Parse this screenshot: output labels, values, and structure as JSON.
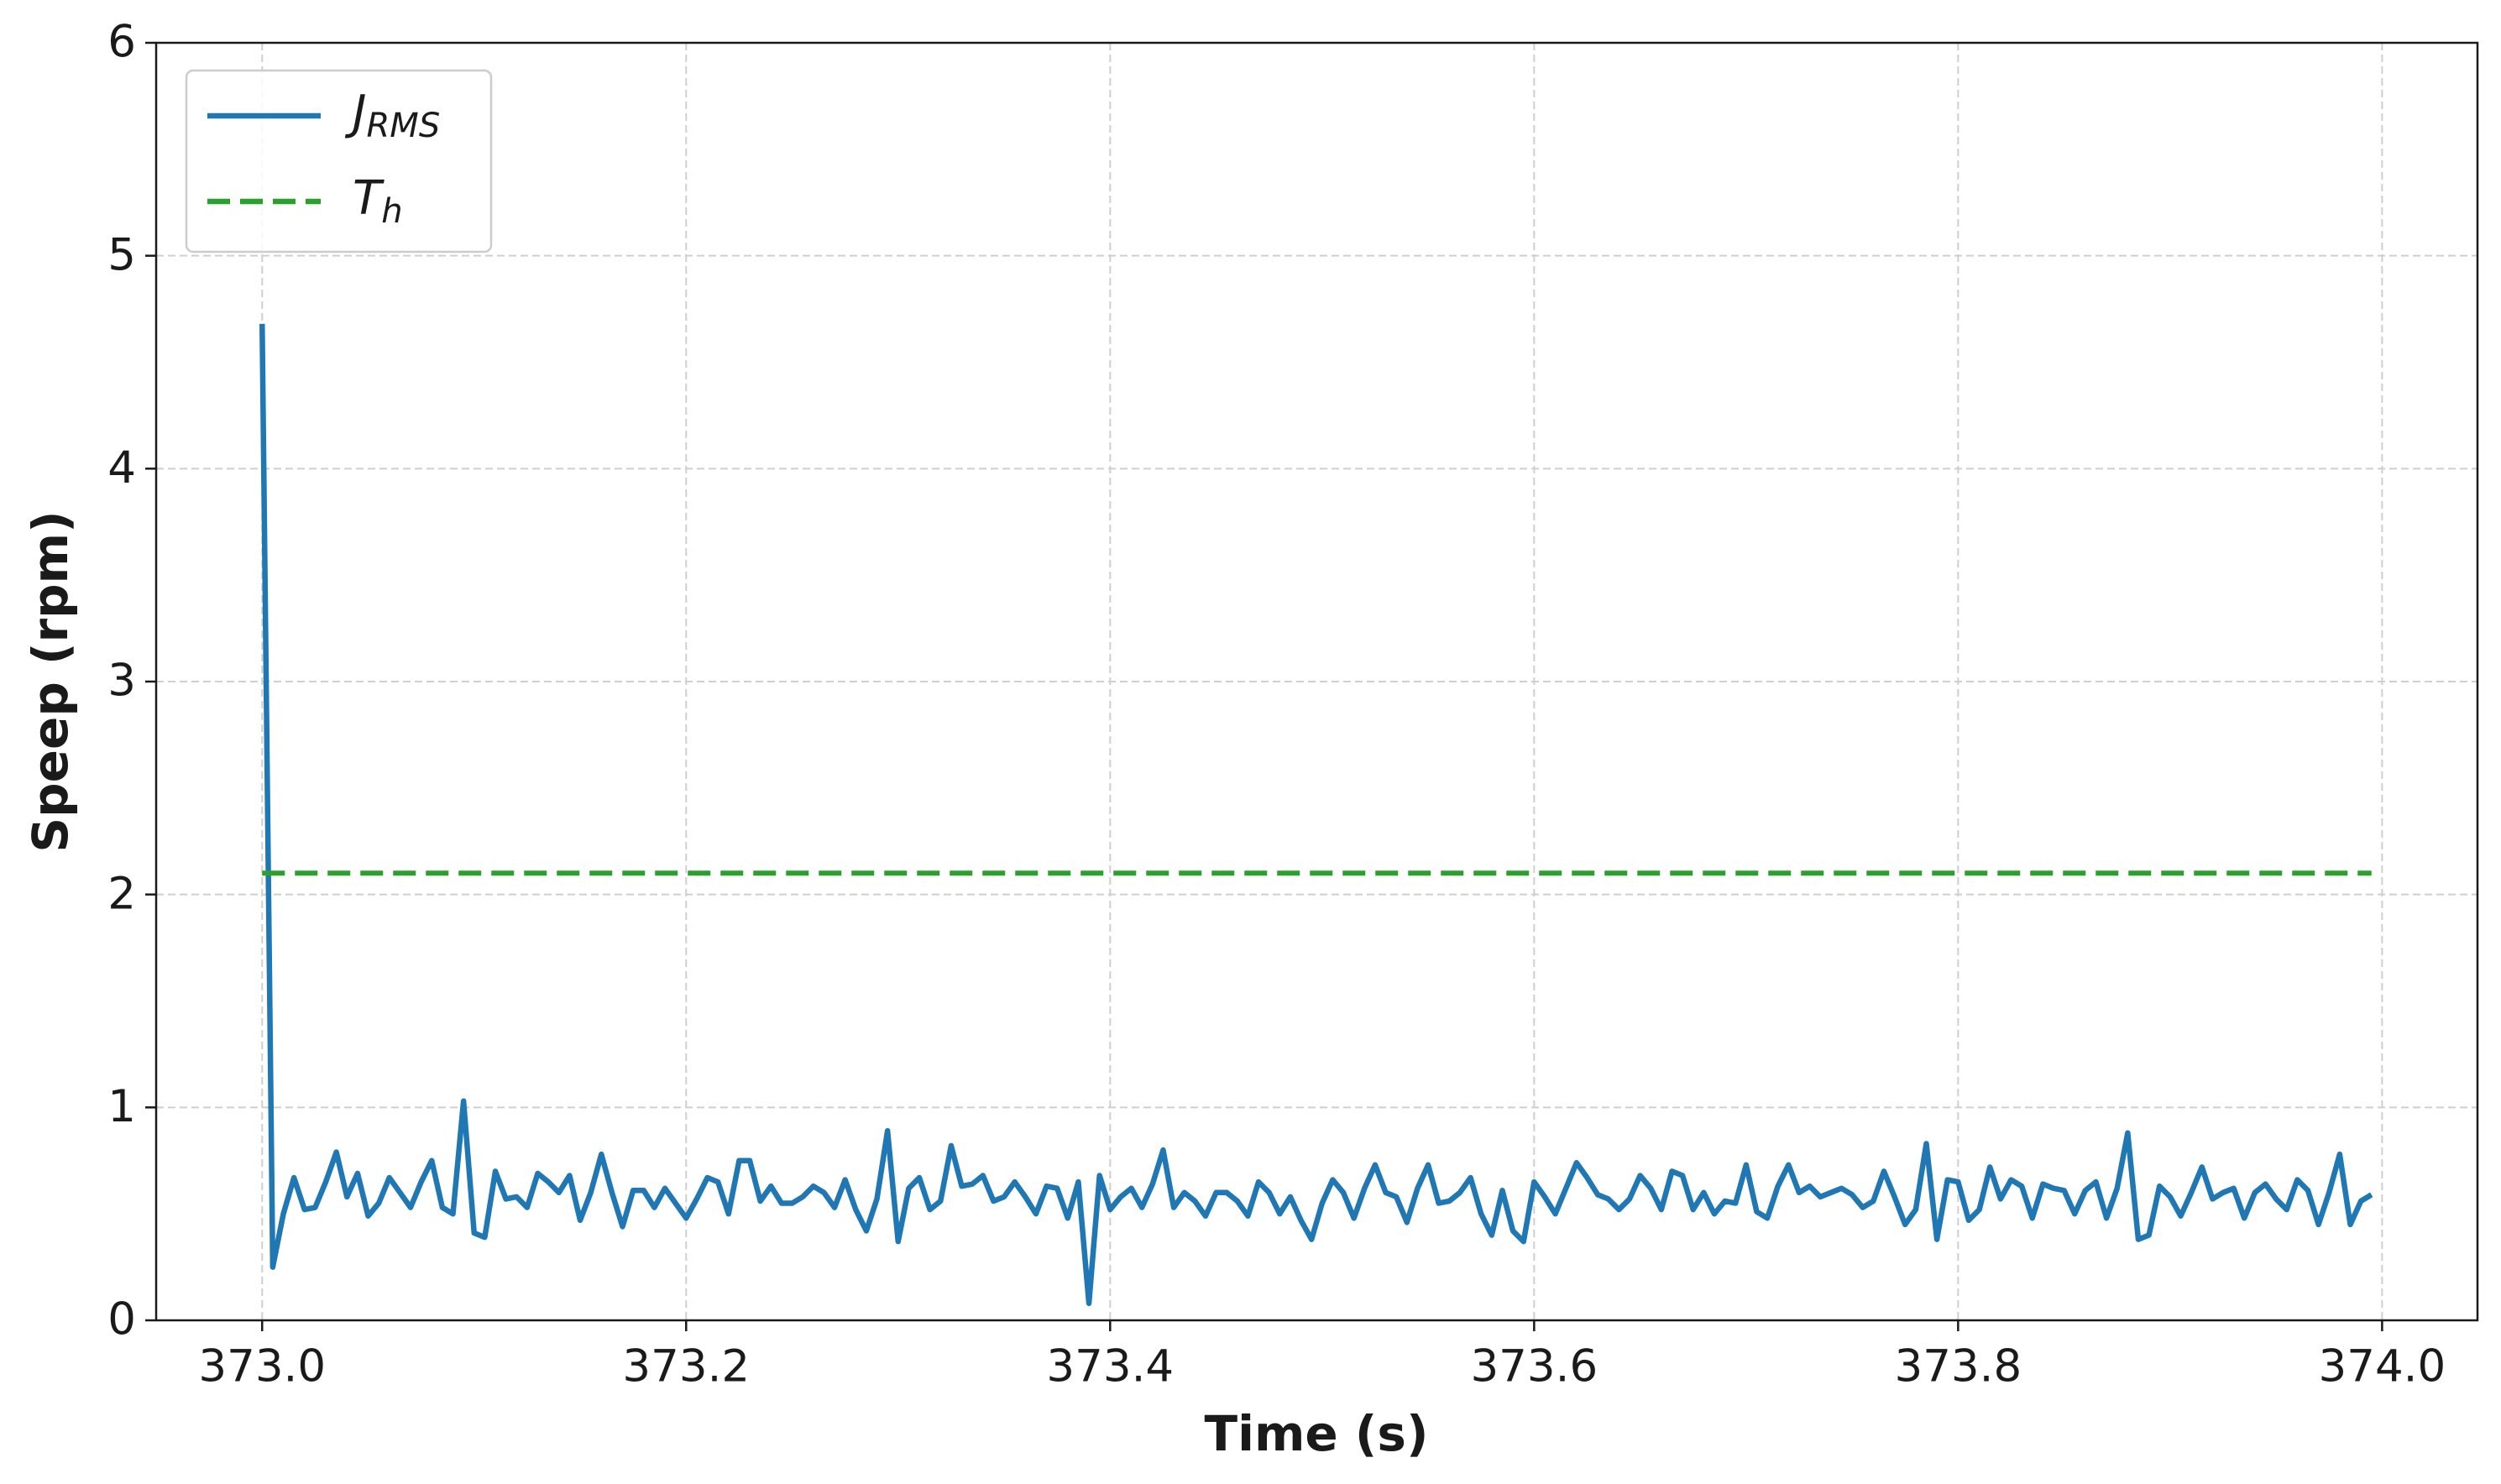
{
  "chart_data": {
    "type": "line",
    "xlabel": "Time (s)",
    "ylabel": "Speep (rpm)",
    "xlim": [
      372.95,
      374.045
    ],
    "ylim": [
      0,
      6
    ],
    "xticks": [
      {
        "value": 373,
        "label": "373.0"
      },
      373.2,
      373.4,
      373.6,
      373.8,
      {
        "value": 374,
        "label": "374.0"
      }
    ],
    "yticks": [
      0,
      1,
      2,
      3,
      4,
      5,
      6
    ],
    "grid": true,
    "legend": "upper left",
    "x": [
      373.0,
      373.005,
      373.01,
      373.015,
      373.02,
      373.025,
      373.03,
      373.035,
      373.04,
      373.045,
      373.05,
      373.055,
      373.06,
      373.065,
      373.07,
      373.075,
      373.08,
      373.085,
      373.09,
      373.095,
      373.1,
      373.105,
      373.11,
      373.115,
      373.12,
      373.125,
      373.13,
      373.135,
      373.14,
      373.145,
      373.15,
      373.155,
      373.16,
      373.165,
      373.17,
      373.175,
      373.18,
      373.185,
      373.19,
      373.195,
      373.2,
      373.205,
      373.21,
      373.215,
      373.22,
      373.225,
      373.23,
      373.235,
      373.24,
      373.245,
      373.25,
      373.255,
      373.26,
      373.265,
      373.27,
      373.275,
      373.28,
      373.285,
      373.29,
      373.295,
      373.3,
      373.305,
      373.31,
      373.315,
      373.32,
      373.325,
      373.33,
      373.335,
      373.34,
      373.345,
      373.35,
      373.355,
      373.36,
      373.365,
      373.37,
      373.375,
      373.38,
      373.385,
      373.39,
      373.395,
      373.4,
      373.405,
      373.41,
      373.415,
      373.42,
      373.425,
      373.43,
      373.435,
      373.44,
      373.445,
      373.45,
      373.455,
      373.46,
      373.465,
      373.47,
      373.475,
      373.48,
      373.485,
      373.49,
      373.495,
      373.5,
      373.505,
      373.51,
      373.515,
      373.52,
      373.525,
      373.53,
      373.535,
      373.54,
      373.545,
      373.55,
      373.555,
      373.56,
      373.565,
      373.57,
      373.575,
      373.58,
      373.585,
      373.59,
      373.595,
      373.6,
      373.605,
      373.61,
      373.615,
      373.62,
      373.625,
      373.63,
      373.635,
      373.64,
      373.645,
      373.65,
      373.655,
      373.66,
      373.665,
      373.67,
      373.675,
      373.68,
      373.685,
      373.69,
      373.695,
      373.7,
      373.705,
      373.71,
      373.715,
      373.72,
      373.725,
      373.73,
      373.735,
      373.74,
      373.745,
      373.75,
      373.755,
      373.76,
      373.765,
      373.77,
      373.775,
      373.78,
      373.785,
      373.79,
      373.795,
      373.8,
      373.805,
      373.81,
      373.815,
      373.82,
      373.825,
      373.83,
      373.835,
      373.84,
      373.845,
      373.85,
      373.855,
      373.86,
      373.865,
      373.87,
      373.875,
      373.88,
      373.885,
      373.89,
      373.895,
      373.9,
      373.905,
      373.91,
      373.915,
      373.92,
      373.925,
      373.93,
      373.935,
      373.94,
      373.945,
      373.95,
      373.955,
      373.96,
      373.965,
      373.97,
      373.975,
      373.98,
      373.985,
      373.99,
      373.995
    ],
    "series": [
      {
        "name": "JRMS",
        "color": "#1f77b4",
        "style": "solid",
        "values": [
          4.68,
          0.25,
          0.5,
          0.67,
          0.52,
          0.53,
          0.65,
          0.79,
          0.58,
          0.69,
          0.49,
          0.55,
          0.67,
          0.6,
          0.53,
          0.65,
          0.75,
          0.53,
          0.5,
          1.03,
          0.41,
          0.39,
          0.7,
          0.57,
          0.58,
          0.53,
          0.69,
          0.65,
          0.6,
          0.68,
          0.47,
          0.6,
          0.78,
          0.6,
          0.44,
          0.61,
          0.61,
          0.53,
          0.62,
          0.55,
          0.48,
          0.57,
          0.67,
          0.65,
          0.5,
          0.75,
          0.75,
          0.56,
          0.63,
          0.55,
          0.55,
          0.58,
          0.63,
          0.6,
          0.53,
          0.66,
          0.52,
          0.42,
          0.57,
          0.89,
          0.37,
          0.62,
          0.67,
          0.52,
          0.56,
          0.82,
          0.63,
          0.64,
          0.68,
          0.56,
          0.58,
          0.65,
          0.58,
          0.5,
          0.63,
          0.62,
          0.48,
          0.65,
          0.08,
          0.68,
          0.52,
          0.58,
          0.62,
          0.53,
          0.64,
          0.8,
          0.53,
          0.6,
          0.56,
          0.49,
          0.6,
          0.6,
          0.56,
          0.49,
          0.65,
          0.6,
          0.5,
          0.58,
          0.47,
          0.38,
          0.55,
          0.66,
          0.6,
          0.48,
          0.62,
          0.73,
          0.6,
          0.58,
          0.46,
          0.62,
          0.73,
          0.55,
          0.56,
          0.6,
          0.67,
          0.5,
          0.4,
          0.61,
          0.42,
          0.37,
          0.65,
          0.58,
          0.5,
          0.62,
          0.74,
          0.67,
          0.59,
          0.57,
          0.52,
          0.57,
          0.68,
          0.62,
          0.52,
          0.7,
          0.68,
          0.52,
          0.6,
          0.5,
          0.56,
          0.55,
          0.73,
          0.51,
          0.48,
          0.63,
          0.73,
          0.6,
          0.63,
          0.58,
          0.6,
          0.62,
          0.59,
          0.53,
          0.56,
          0.7,
          0.58,
          0.45,
          0.52,
          0.83,
          0.38,
          0.66,
          0.65,
          0.47,
          0.52,
          0.72,
          0.57,
          0.66,
          0.63,
          0.48,
          0.64,
          0.62,
          0.61,
          0.5,
          0.61,
          0.65,
          0.48,
          0.62,
          0.88,
          0.38,
          0.4,
          0.63,
          0.58,
          0.49,
          0.6,
          0.72,
          0.57,
          0.6,
          0.62,
          0.48,
          0.6,
          0.64,
          0.57,
          0.52,
          0.66,
          0.61,
          0.45,
          0.6,
          0.78,
          0.45,
          0.56,
          0.59
        ]
      },
      {
        "name": "Th",
        "color": "#2ca02c",
        "style": "dashed",
        "x": [
          373.0,
          373.995
        ],
        "values": [
          2.1,
          2.1
        ]
      }
    ]
  }
}
